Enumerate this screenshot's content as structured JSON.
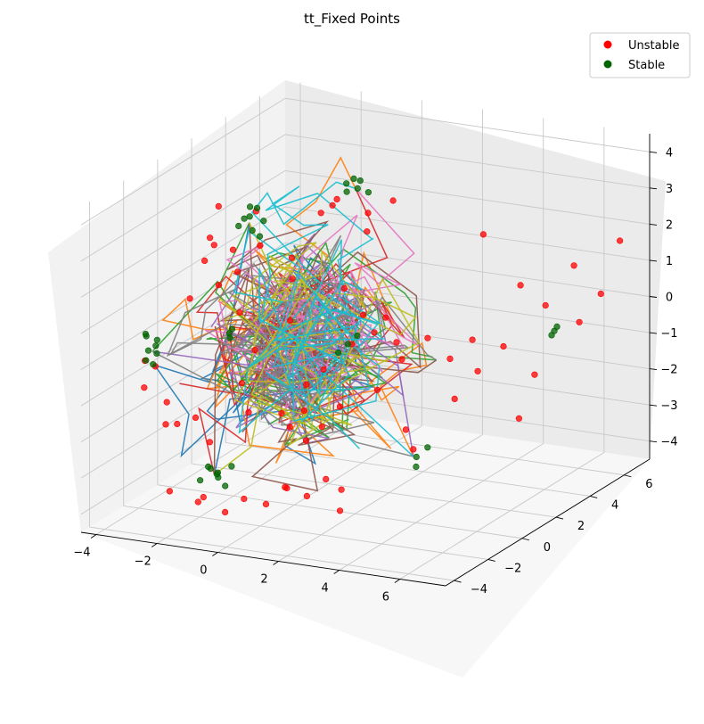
{
  "chart_data": {
    "type": "scatter",
    "title": "tt_Fixed Points",
    "projection": "3d",
    "grid": true,
    "legend_position": "top-right",
    "xlim": [
      -4.5,
      7.5
    ],
    "ylim": [
      -4.5,
      7.5
    ],
    "zlim": [
      -4.5,
      4.5
    ],
    "xticks": [
      -4,
      -2,
      0,
      2,
      4,
      6
    ],
    "yticks": [
      -4,
      -2,
      0,
      2,
      4,
      6
    ],
    "zticks": [
      -4,
      -3,
      -2,
      -1,
      0,
      1,
      2,
      3,
      4
    ],
    "xtick_labels": [
      "−4",
      "−2",
      "0",
      "2",
      "4",
      "6"
    ],
    "ytick_labels": [
      "−4",
      "−2",
      "0",
      "2",
      "4",
      "6"
    ],
    "ztick_labels": [
      "−4",
      "−3",
      "−2",
      "−1",
      "0",
      "1",
      "2",
      "3",
      "4"
    ],
    "series": [
      {
        "name": "Unstable",
        "color": "#ff0000",
        "marker": "circle",
        "points": [
          [
            -3.2,
            1.0,
            2.0
          ],
          [
            -3.0,
            0.4,
            2.4
          ],
          [
            -2.8,
            1.4,
            1.8
          ],
          [
            -3.4,
            0.8,
            1.6
          ],
          [
            -2.6,
            0.2,
            1.2
          ],
          [
            -3.1,
            -0.6,
            1.0
          ],
          [
            -2.2,
            0.6,
            1.5
          ],
          [
            -1.8,
            1.2,
            2.1
          ],
          [
            -0.8,
            3.0,
            2.6
          ],
          [
            -0.5,
            3.4,
            2.9
          ],
          [
            -0.2,
            2.6,
            3.0
          ],
          [
            0.3,
            3.8,
            2.5
          ],
          [
            0.6,
            3.2,
            2.2
          ],
          [
            0.9,
            4.2,
            2.8
          ],
          [
            -1.2,
            2.0,
            1.6
          ],
          [
            -0.9,
            1.5,
            1.2
          ],
          [
            -3.8,
            -2.0,
            -0.4
          ],
          [
            -3.6,
            -2.4,
            -1.0
          ],
          [
            -3.9,
            -1.2,
            -0.8
          ],
          [
            -3.3,
            -1.6,
            -1.6
          ],
          [
            -3.0,
            -2.2,
            -2.0
          ],
          [
            -2.4,
            -2.6,
            -1.8
          ],
          [
            -2.8,
            -0.8,
            -2.2
          ],
          [
            -2.0,
            -1.4,
            -2.6
          ],
          [
            -1.5,
            -0.4,
            -1.2
          ],
          [
            -1.0,
            -0.9,
            -1.8
          ],
          [
            -0.7,
            0.5,
            -2.2
          ],
          [
            -0.2,
            0.1,
            -2.4
          ],
          [
            0.1,
            0.4,
            -2.0
          ],
          [
            0.5,
            -0.2,
            -2.6
          ],
          [
            0.8,
            0.2,
            -2.3
          ],
          [
            0.4,
            1.0,
            -1.0
          ],
          [
            1.0,
            1.6,
            -0.4
          ],
          [
            1.4,
            2.2,
            -0.2
          ],
          [
            1.8,
            2.8,
            -0.6
          ],
          [
            2.2,
            2.4,
            -0.9
          ],
          [
            2.6,
            3.2,
            -0.5
          ],
          [
            2.0,
            1.8,
            0.4
          ],
          [
            1.6,
            1.2,
            0.6
          ],
          [
            3.0,
            3.8,
            -1.2
          ],
          [
            3.4,
            4.4,
            -0.8
          ],
          [
            3.8,
            4.0,
            -1.5
          ],
          [
            4.2,
            4.8,
            -1.0
          ],
          [
            3.6,
            3.0,
            -2.0
          ],
          [
            -1.6,
            -2.8,
            -3.8
          ],
          [
            -1.2,
            -3.2,
            -3.5
          ],
          [
            -0.6,
            -3.0,
            -3.9
          ],
          [
            -0.2,
            -2.6,
            -3.6
          ],
          [
            0.3,
            -2.2,
            -3.8
          ],
          [
            0.7,
            -1.8,
            -3.4
          ],
          [
            1.2,
            -1.4,
            -3.7
          ],
          [
            1.6,
            -1.0,
            -3.3
          ],
          [
            2.0,
            -0.8,
            -3.6
          ],
          [
            2.4,
            -1.6,
            -3.9
          ],
          [
            1.1,
            -2.4,
            -3.2
          ],
          [
            -2.2,
            -3.4,
            -3.4
          ],
          [
            4.2,
            5.8,
            0.4
          ],
          [
            4.8,
            6.2,
            -0.2
          ],
          [
            5.4,
            6.8,
            0.8
          ],
          [
            5.8,
            6.4,
            -0.6
          ],
          [
            6.4,
            6.6,
            0.2
          ],
          [
            5.0,
            5.2,
            -1.8
          ],
          [
            3.2,
            5.4,
            1.8
          ],
          [
            6.8,
            7.0,
            1.6
          ],
          [
            4.6,
            5.0,
            -3.0
          ],
          [
            2.8,
            2.0,
            -3.2
          ],
          [
            -2.6,
            2.4,
            2.6
          ],
          [
            -3.5,
            1.8,
            2.8
          ],
          [
            1.2,
            0.8,
            1.4
          ],
          [
            0.2,
            -0.6,
            0.8
          ],
          [
            -0.4,
            -1.6,
            0.2
          ],
          [
            2.4,
            0.6,
            -1.2
          ],
          [
            0.9,
            -0.9,
            -0.8
          ],
          [
            1.5,
            0.0,
            -1.6
          ],
          [
            3.0,
            1.2,
            -2.4
          ],
          [
            -1.8,
            0.0,
            0.6
          ]
        ]
      },
      {
        "name": "Stable",
        "color": "#006400",
        "marker": "circle",
        "points": [
          [
            -2.9,
            1.9,
            2.3
          ],
          [
            -2.7,
            2.2,
            2.5
          ],
          [
            -2.5,
            2.0,
            2.2
          ],
          [
            -2.3,
            2.3,
            2.4
          ],
          [
            -2.6,
            1.7,
            2.6
          ],
          [
            -2.2,
            1.9,
            2.1
          ],
          [
            -2.8,
            2.4,
            2.7
          ],
          [
            -2.4,
            2.1,
            2.8
          ],
          [
            -0.3,
            3.6,
            3.3
          ],
          [
            -0.1,
            3.9,
            3.1
          ],
          [
            0.1,
            3.7,
            3.4
          ],
          [
            0.2,
            4.0,
            3.0
          ],
          [
            -0.4,
            3.8,
            3.0
          ],
          [
            0.0,
            3.5,
            3.5
          ],
          [
            -4.2,
            -1.2,
            0.0
          ],
          [
            -4.0,
            -1.0,
            -0.3
          ],
          [
            -4.1,
            -1.4,
            -0.6
          ],
          [
            -3.9,
            -1.1,
            -0.1
          ],
          [
            -4.3,
            -0.9,
            -0.5
          ],
          [
            -3.8,
            -1.3,
            -0.4
          ],
          [
            -4.0,
            -1.6,
            0.2
          ],
          [
            -4.2,
            -0.8,
            -0.9
          ],
          [
            -1.6,
            -2.2,
            -3.0
          ],
          [
            -1.4,
            -2.0,
            -3.2
          ],
          [
            -1.2,
            -2.4,
            -3.1
          ],
          [
            -1.5,
            -1.8,
            -3.4
          ],
          [
            -1.3,
            -2.6,
            -2.9
          ],
          [
            -1.1,
            -2.1,
            -3.5
          ],
          [
            -1.7,
            -2.5,
            -3.3
          ],
          [
            -1.0,
            -1.9,
            -3.0
          ],
          [
            2.9,
            2.0,
            -3.4
          ],
          [
            3.1,
            2.3,
            -3.2
          ],
          [
            3.0,
            1.8,
            -3.6
          ],
          [
            5.2,
            6.0,
            -0.8
          ],
          [
            5.4,
            5.8,
            -0.6
          ],
          [
            5.0,
            6.2,
            -1.0
          ],
          [
            -1.8,
            -0.6,
            0.2
          ],
          [
            -1.6,
            -0.8,
            0.4
          ],
          [
            -1.9,
            -0.4,
            0.0
          ],
          [
            1.2,
            1.0,
            -0.2
          ],
          [
            1.4,
            1.2,
            0.0
          ],
          [
            1.0,
            0.8,
            -0.4
          ]
        ]
      }
    ]
  },
  "legend": {
    "items": [
      {
        "label": "Unstable",
        "color": "#ff0000"
      },
      {
        "label": "Stable",
        "color": "#006400"
      }
    ]
  },
  "trajectory_colors": [
    "#1f77b4",
    "#ff7f0e",
    "#2ca02c",
    "#d62728",
    "#9467bd",
    "#8c564b",
    "#e377c2",
    "#7f7f7f",
    "#bcbd22",
    "#17becf"
  ]
}
